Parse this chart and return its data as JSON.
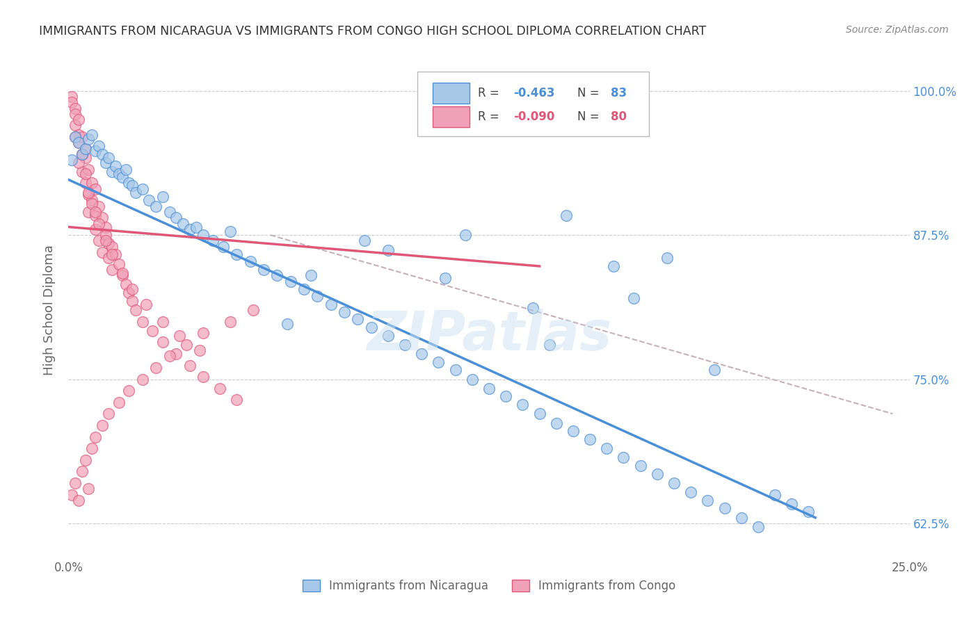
{
  "title": "IMMIGRANTS FROM NICARAGUA VS IMMIGRANTS FROM CONGO HIGH SCHOOL DIPLOMA CORRELATION CHART",
  "source": "Source: ZipAtlas.com",
  "ylabel": "High School Diploma",
  "xlim": [
    0.0,
    0.25
  ],
  "ylim": [
    0.595,
    1.025
  ],
  "yticks": [
    0.625,
    0.75,
    0.875,
    1.0
  ],
  "ytick_labels": [
    "62.5%",
    "75.0%",
    "87.5%",
    "100.0%"
  ],
  "xticks": [
    0.0,
    0.05,
    0.1,
    0.15,
    0.2,
    0.25
  ],
  "xtick_labels": [
    "0.0%",
    "",
    "",
    "",
    "",
    "25.0%"
  ],
  "color_nicaragua": "#a8c8e8",
  "color_congo": "#f0a0b8",
  "color_line_nicaragua": "#4a90d9",
  "color_line_congo": "#e05878",
  "color_dashed": "#c8b0b8",
  "title_color": "#333333",
  "source_color": "#888888",
  "tick_color_right": "#4a90d9",
  "watermark": "ZIPatlas",
  "nicaragua_x": [
    0.001,
    0.002,
    0.003,
    0.004,
    0.005,
    0.006,
    0.007,
    0.008,
    0.009,
    0.01,
    0.011,
    0.012,
    0.013,
    0.014,
    0.015,
    0.016,
    0.017,
    0.018,
    0.019,
    0.02,
    0.022,
    0.024,
    0.026,
    0.028,
    0.03,
    0.032,
    0.034,
    0.036,
    0.038,
    0.04,
    0.043,
    0.046,
    0.05,
    0.054,
    0.058,
    0.062,
    0.066,
    0.07,
    0.074,
    0.078,
    0.082,
    0.086,
    0.09,
    0.095,
    0.1,
    0.105,
    0.11,
    0.115,
    0.12,
    0.125,
    0.13,
    0.135,
    0.14,
    0.145,
    0.15,
    0.155,
    0.16,
    0.165,
    0.17,
    0.175,
    0.18,
    0.185,
    0.19,
    0.195,
    0.2,
    0.205,
    0.21,
    0.215,
    0.22,
    0.048,
    0.072,
    0.088,
    0.112,
    0.138,
    0.162,
    0.178,
    0.148,
    0.065,
    0.095,
    0.118,
    0.143,
    0.168,
    0.192
  ],
  "nicaragua_y": [
    0.94,
    0.96,
    0.955,
    0.945,
    0.95,
    0.958,
    0.962,
    0.948,
    0.952,
    0.945,
    0.938,
    0.942,
    0.93,
    0.935,
    0.928,
    0.925,
    0.932,
    0.92,
    0.918,
    0.912,
    0.915,
    0.905,
    0.9,
    0.908,
    0.895,
    0.89,
    0.885,
    0.88,
    0.882,
    0.875,
    0.87,
    0.865,
    0.858,
    0.852,
    0.845,
    0.84,
    0.835,
    0.828,
    0.822,
    0.815,
    0.808,
    0.802,
    0.795,
    0.788,
    0.78,
    0.772,
    0.765,
    0.758,
    0.75,
    0.742,
    0.735,
    0.728,
    0.72,
    0.712,
    0.705,
    0.698,
    0.69,
    0.682,
    0.675,
    0.668,
    0.66,
    0.652,
    0.645,
    0.638,
    0.63,
    0.622,
    0.65,
    0.642,
    0.635,
    0.878,
    0.84,
    0.87,
    0.838,
    0.812,
    0.848,
    0.855,
    0.892,
    0.798,
    0.862,
    0.875,
    0.78,
    0.82,
    0.758
  ],
  "congo_x": [
    0.001,
    0.001,
    0.002,
    0.002,
    0.002,
    0.003,
    0.003,
    0.003,
    0.004,
    0.004,
    0.004,
    0.005,
    0.005,
    0.005,
    0.006,
    0.006,
    0.006,
    0.007,
    0.007,
    0.008,
    0.008,
    0.008,
    0.009,
    0.009,
    0.01,
    0.01,
    0.011,
    0.011,
    0.012,
    0.012,
    0.013,
    0.013,
    0.014,
    0.015,
    0.016,
    0.017,
    0.018,
    0.019,
    0.02,
    0.022,
    0.025,
    0.028,
    0.032,
    0.036,
    0.04,
    0.045,
    0.05,
    0.001,
    0.002,
    0.003,
    0.004,
    0.005,
    0.006,
    0.007,
    0.008,
    0.01,
    0.012,
    0.015,
    0.018,
    0.022,
    0.026,
    0.03,
    0.035,
    0.04,
    0.048,
    0.055,
    0.002,
    0.003,
    0.004,
    0.005,
    0.006,
    0.007,
    0.008,
    0.009,
    0.011,
    0.013,
    0.016,
    0.019,
    0.023,
    0.028,
    0.033,
    0.039
  ],
  "congo_y": [
    0.995,
    0.99,
    0.985,
    0.97,
    0.98,
    0.962,
    0.975,
    0.955,
    0.945,
    0.96,
    0.93,
    0.942,
    0.92,
    0.95,
    0.91,
    0.932,
    0.895,
    0.92,
    0.905,
    0.892,
    0.915,
    0.88,
    0.9,
    0.87,
    0.89,
    0.86,
    0.882,
    0.875,
    0.868,
    0.855,
    0.865,
    0.845,
    0.858,
    0.85,
    0.84,
    0.832,
    0.825,
    0.818,
    0.81,
    0.8,
    0.792,
    0.782,
    0.772,
    0.762,
    0.752,
    0.742,
    0.732,
    0.65,
    0.66,
    0.645,
    0.67,
    0.68,
    0.655,
    0.69,
    0.7,
    0.71,
    0.72,
    0.73,
    0.74,
    0.75,
    0.76,
    0.77,
    0.78,
    0.79,
    0.8,
    0.81,
    0.96,
    0.938,
    0.945,
    0.928,
    0.912,
    0.902,
    0.895,
    0.885,
    0.87,
    0.858,
    0.842,
    0.828,
    0.815,
    0.8,
    0.788,
    0.775
  ],
  "blue_line_x0": 0.0,
  "blue_line_y0": 0.923,
  "blue_line_x1": 0.222,
  "blue_line_y1": 0.63,
  "pink_line_x0": 0.0,
  "pink_line_y0": 0.882,
  "pink_line_x1": 0.14,
  "pink_line_y1": 0.848,
  "dash_line_x0": 0.06,
  "dash_line_y0": 0.875,
  "dash_line_x1": 0.245,
  "dash_line_y1": 0.72
}
